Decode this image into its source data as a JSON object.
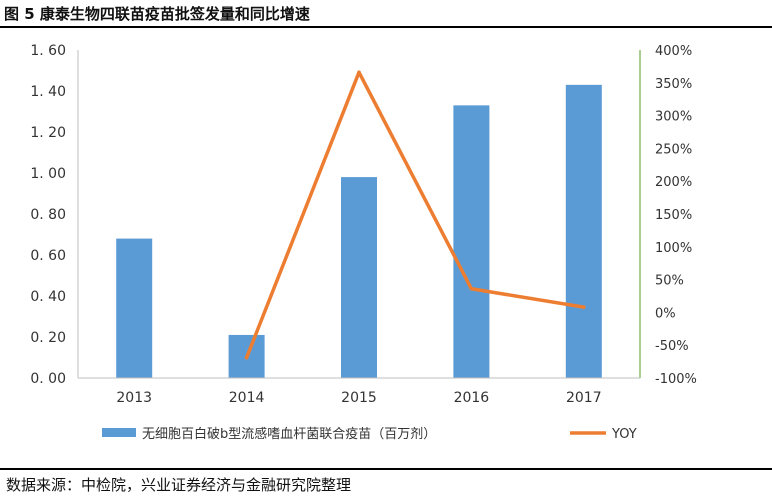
{
  "figure": {
    "title": "图 5 康泰生物四联苗疫苗批签发量和同比增速",
    "source": "数据来源：中检院，兴业证券经济与金融研究院整理"
  },
  "chart_data": {
    "type": "bar+line",
    "categories": [
      "2013",
      "2014",
      "2015",
      "2016",
      "2017"
    ],
    "bar_series": {
      "name": "无细胞百白破b型流感嗜血杆菌联合疫苗（百万剂）",
      "values": [
        0.68,
        0.21,
        0.98,
        1.33,
        1.43
      ],
      "color": "#5b9bd5",
      "axis": "left"
    },
    "line_series": {
      "name": "YOY",
      "values": [
        null,
        -69,
        366,
        36,
        8
      ],
      "color": "#ed7d31",
      "axis": "right",
      "unit": "%"
    },
    "y_left": {
      "min": 0,
      "max": 1.6,
      "step": 0.2,
      "tick_labels": [
        "0. 00",
        "0. 20",
        "0. 40",
        "0. 60",
        "0. 80",
        "1. 00",
        "1. 20",
        "1. 40",
        "1. 60"
      ]
    },
    "y_right": {
      "min": -100,
      "max": 400,
      "step": 50,
      "tick_labels": [
        "-100%",
        "-50%",
        "0%",
        "50%",
        "100%",
        "150%",
        "200%",
        "250%",
        "300%",
        "350%",
        "400%"
      ]
    },
    "grid": false,
    "legend_position": "bottom"
  }
}
